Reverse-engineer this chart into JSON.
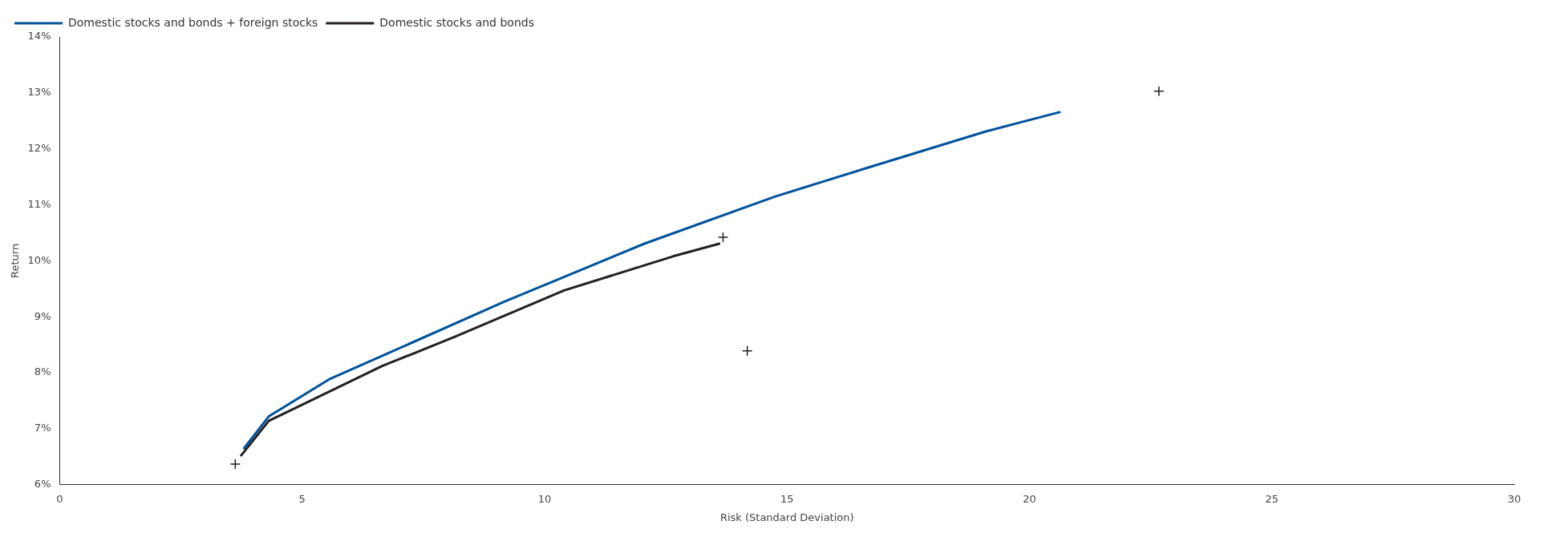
{
  "chart_data": {
    "type": "line",
    "xlabel": "Risk (Standard Deviation)",
    "ylabel": "Return",
    "xlim": [
      0,
      30
    ],
    "xticks": [
      0,
      5,
      10,
      15,
      20,
      25,
      30
    ],
    "ylim": [
      6,
      14
    ],
    "yticks": [
      {
        "value": 6,
        "label": "6%"
      },
      {
        "value": 7,
        "label": "7%"
      },
      {
        "value": 8,
        "label": "8%"
      },
      {
        "value": 9,
        "label": "9%"
      },
      {
        "value": 10,
        "label": "10%"
      },
      {
        "value": 11,
        "label": "11%"
      },
      {
        "value": 12,
        "label": "12%"
      },
      {
        "value": 13,
        "label": "13%"
      },
      {
        "value": 14,
        "label": "14%"
      }
    ],
    "grid": false,
    "legend": "top left",
    "line_style": "solid",
    "series": [
      {
        "name": "Domestic stocks and bonds + foreign stocks",
        "color": "#00529b",
        "x": [
          3.79,
          4.31,
          5.55,
          9.17,
          12.07,
          14.76,
          16.73,
          19.1,
          20.64
        ],
        "values": [
          6.64,
          7.22,
          7.88,
          9.27,
          10.31,
          11.15,
          11.68,
          12.31,
          12.66
        ]
      },
      {
        "name": "Domestic stocks and bonds",
        "color": "#231f20",
        "x": [
          3.73,
          4.31,
          6.65,
          8.14,
          10.4,
          12.65,
          13.62
        ],
        "values": [
          6.51,
          7.14,
          8.12,
          8.64,
          9.47,
          10.08,
          10.31
        ]
      },
      {
        "type": "scatter",
        "marker": "cross",
        "color": "#231f20",
        "x": [
          3.62,
          13.68,
          14.18,
          22.67
        ],
        "values": [
          6.37,
          10.42,
          8.39,
          13.03
        ]
      }
    ]
  }
}
